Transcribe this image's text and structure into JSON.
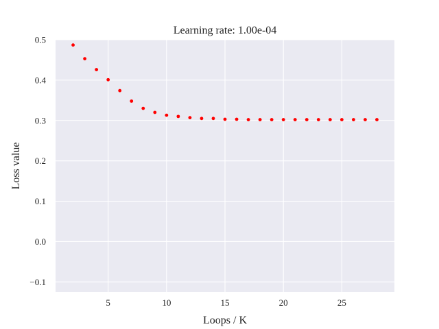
{
  "chart_data": {
    "type": "scatter",
    "title": "Learning rate: 1.00e-04",
    "xlabel": "Loops / K",
    "ylabel": "Loss value",
    "xlim": [
      0.5,
      29.5
    ],
    "ylim": [
      -0.125,
      0.5
    ],
    "xticks": [
      5,
      10,
      15,
      20,
      25
    ],
    "xtick_labels": [
      "5",
      "10",
      "15",
      "20",
      "25"
    ],
    "yticks": [
      -0.1,
      0.0,
      0.1,
      0.2,
      0.3,
      0.4,
      0.5
    ],
    "ytick_labels": [
      "−0.1",
      "0.0",
      "0.1",
      "0.2",
      "0.3",
      "0.4",
      "0.5"
    ],
    "grid": true,
    "colors": {
      "background": "#eaeaf2",
      "grid": "#ffffff",
      "marker": "#ff0000"
    },
    "series": [
      {
        "x": [
          2,
          3,
          4,
          5,
          6,
          7,
          8,
          9,
          10,
          11,
          12,
          13,
          14,
          15,
          16,
          17,
          18,
          19,
          20,
          21,
          22,
          23,
          24,
          25,
          26,
          27,
          28
        ],
        "y": [
          0.487,
          0.453,
          0.426,
          0.401,
          0.374,
          0.348,
          0.33,
          0.32,
          0.313,
          0.31,
          0.307,
          0.305,
          0.305,
          0.303,
          0.303,
          0.302,
          0.302,
          0.302,
          0.302,
          0.302,
          0.302,
          0.302,
          0.302,
          0.302,
          0.302,
          0.302,
          0.302
        ]
      }
    ]
  }
}
